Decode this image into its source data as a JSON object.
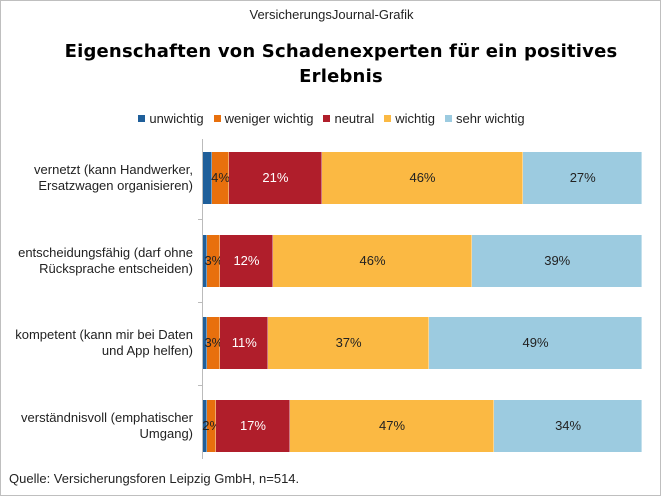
{
  "header": {
    "source_label": "VersicherungsJournal-Grafik"
  },
  "chart_data": {
    "type": "bar",
    "orientation": "horizontal-stacked-100",
    "title": "Eigenschaften von Schadenexperten für ein positives Erlebnis",
    "categories": [
      "vernetzt (kann Handwerker, Ersatzwagen organisieren)",
      "entscheidungsfähig (darf ohne Rücksprache entscheiden)",
      "kompetent (kann mir bei Daten und App helfen)",
      "verständnisvoll (emphatischer Umgang)"
    ],
    "series": [
      {
        "name": "unwichtig",
        "color": "#1f5f9a",
        "values": [
          2,
          1,
          1,
          1
        ],
        "labels": [
          "",
          "",
          "",
          ""
        ]
      },
      {
        "name": "weniger wichtig",
        "color": "#e8700d",
        "values": [
          4,
          3,
          3,
          2
        ],
        "labels": [
          "4%",
          "3%",
          "3%",
          "2%"
        ]
      },
      {
        "name": "neutral",
        "color": "#b01e2b",
        "values": [
          21,
          12,
          11,
          17
        ],
        "labels": [
          "21%",
          "12%",
          "11%",
          "17%"
        ]
      },
      {
        "name": "wichtig",
        "color": "#fbb943",
        "values": [
          46,
          46,
          37,
          47
        ],
        "labels": [
          "46%",
          "46%",
          "37%",
          "47%"
        ]
      },
      {
        "name": "sehr wichtig",
        "color": "#9ccbe0",
        "values": [
          27,
          39,
          49,
          34
        ],
        "labels": [
          "27%",
          "39%",
          "49%",
          "34%"
        ]
      }
    ],
    "xlim": [
      0,
      100
    ],
    "legend": "top"
  },
  "footer": {
    "source": "Quelle: Versicherungsforen  Leipzig GmbH, n=514."
  }
}
